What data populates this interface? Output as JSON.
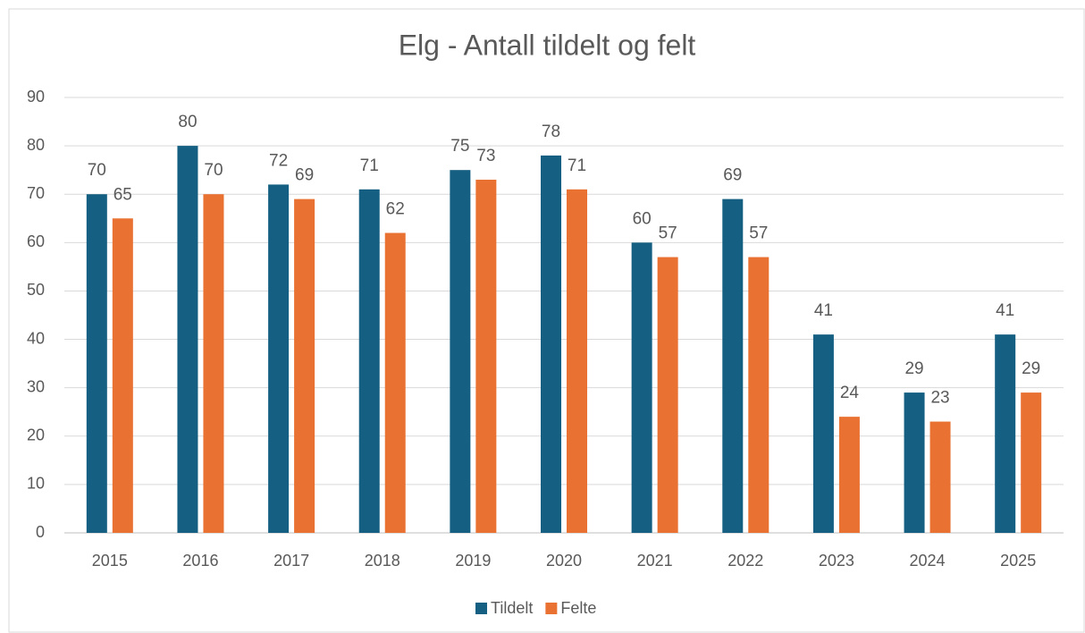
{
  "chart_data": {
    "type": "bar",
    "title": "Elg - Antall tildelt og felt",
    "categories": [
      "2015",
      "2016",
      "2017",
      "2018",
      "2019",
      "2020",
      "2021",
      "2022",
      "2023",
      "2024",
      "2025"
    ],
    "series": [
      {
        "name": "Tildelt",
        "color": "#156082",
        "values": [
          70,
          80,
          72,
          71,
          75,
          78,
          60,
          69,
          41,
          29,
          41
        ]
      },
      {
        "name": "Felte",
        "color": "#e97132",
        "values": [
          65,
          70,
          69,
          62,
          73,
          71,
          57,
          57,
          24,
          23,
          29
        ]
      }
    ],
    "ylim": [
      0,
      90
    ],
    "yticks": [
      0,
      10,
      20,
      30,
      40,
      50,
      60,
      70,
      80,
      90
    ],
    "grid": true,
    "legend": "bottom"
  }
}
